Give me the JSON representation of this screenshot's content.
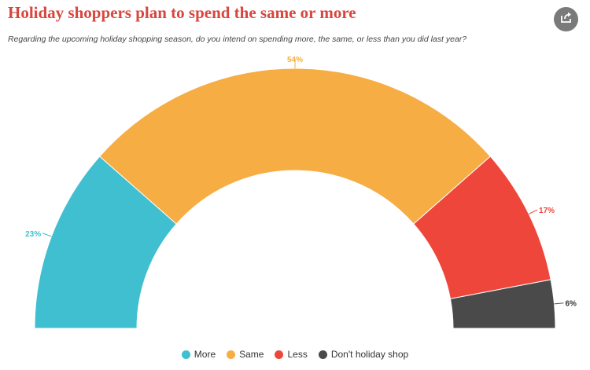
{
  "header": {
    "title": "Holiday shoppers plan to spend the same or more",
    "subtitle": "Regarding the upcoming holiday shopping season, do you intend on spending more, the same, or less than you did last year?",
    "share_icon": "share-icon"
  },
  "chart_data": {
    "type": "pie",
    "variant": "semi-donut",
    "title": "Holiday shoppers plan to spend the same or more",
    "categories": [
      "More",
      "Same",
      "Less",
      "Don't holiday shop"
    ],
    "values": [
      23,
      54,
      17,
      6
    ],
    "labels": [
      "23%",
      "54%",
      "17%",
      "6%"
    ],
    "colors": [
      "#3fbfcf",
      "#f6ad43",
      "#ee463b",
      "#4a4a4a"
    ],
    "legend_position": "bottom"
  }
}
